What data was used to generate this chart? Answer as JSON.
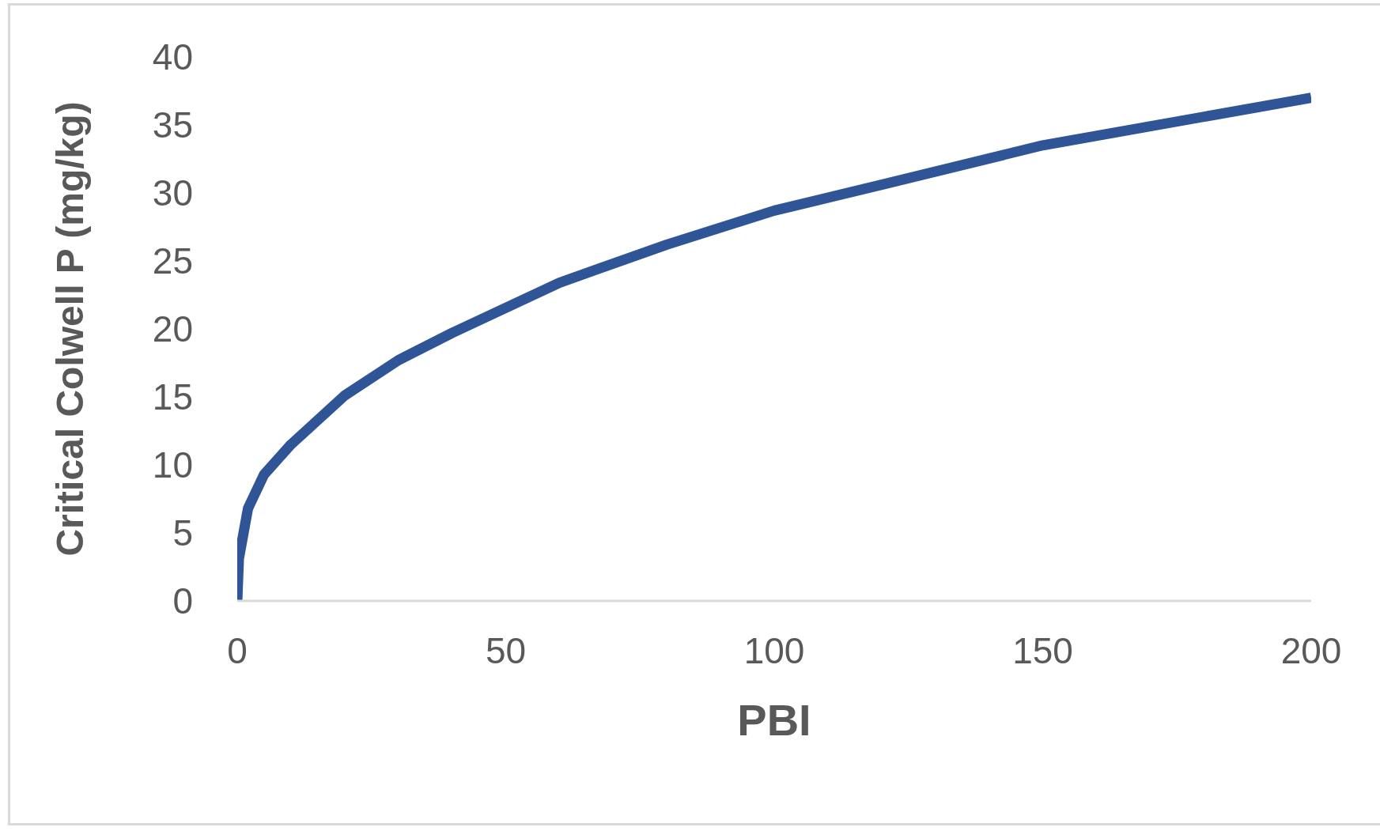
{
  "chart_data": {
    "type": "line",
    "xlabel": "PBI",
    "ylabel": "Critical Colwell P (mg/kg)",
    "x": [
      0,
      0.3,
      2,
      5,
      10,
      20,
      30,
      40,
      60,
      80,
      100,
      120,
      150,
      200
    ],
    "series": [
      {
        "color": "#2f5597",
        "values": [
          0,
          3.1,
          6.8,
          9.3,
          11.5,
          15.1,
          17.7,
          19.7,
          23.4,
          26.2,
          28.7,
          30.6,
          33.5,
          37
        ]
      }
    ],
    "xlim": [
      0,
      200
    ],
    "xticks": [
      0,
      50,
      100,
      150,
      200
    ],
    "ylim": [
      0,
      40
    ],
    "yticks": [
      0,
      5,
      10,
      15,
      20,
      25,
      30,
      35,
      40
    ],
    "grid": false,
    "legend": false,
    "marker": "none",
    "line_style": "solid"
  }
}
